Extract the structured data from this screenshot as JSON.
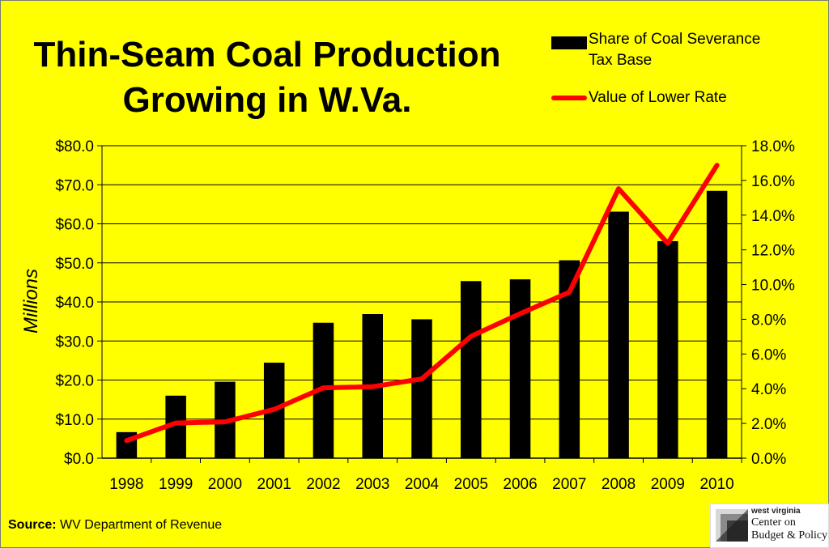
{
  "title": [
    "Thin-Seam Coal Production",
    "Growing in W.Va."
  ],
  "legend": {
    "bar_label_line1": "Share of Coal Severance",
    "bar_label_line2": "Tax Base",
    "line_label": "Value of Lower Rate"
  },
  "source": {
    "prefix": "Source:",
    "text": "WV Department of Revenue"
  },
  "logo": {
    "line1": "west virginia",
    "line2": "Center on",
    "line3": "Budget & Policy"
  },
  "colors": {
    "background": "#ffff00",
    "bars": "#000000",
    "line": "#ff0000",
    "grid": "#000000"
  },
  "chart_data": {
    "type": "bar+line",
    "categories": [
      "1998",
      "1999",
      "2000",
      "2001",
      "2002",
      "2003",
      "2004",
      "2005",
      "2006",
      "2007",
      "2008",
      "2009",
      "2010"
    ],
    "ylabel": "Millions",
    "ylim": [
      0,
      80
    ],
    "y_ticks": [
      "$0.0",
      "$10.0",
      "$20.0",
      "$30.0",
      "$40.0",
      "$50.0",
      "$60.0",
      "$70.0",
      "$80.0"
    ],
    "y2lim": [
      0,
      18
    ],
    "y2_ticks": [
      "0.0%",
      "2.0%",
      "4.0%",
      "6.0%",
      "8.0%",
      "10.0%",
      "12.0%",
      "14.0%",
      "16.0%",
      "18.0%"
    ],
    "grid": true,
    "legend_position": "top-right",
    "series": [
      {
        "name": "Share of Coal Severance Tax Base",
        "type": "bar",
        "axis": "right",
        "values": [
          1.5,
          3.6,
          4.4,
          5.5,
          7.8,
          8.3,
          8.0,
          10.2,
          10.3,
          11.4,
          14.2,
          12.5,
          15.4
        ]
      },
      {
        "name": "Value of Lower Rate",
        "type": "line",
        "axis": "left",
        "values": [
          4.5,
          9.0,
          9.3,
          12.5,
          18.0,
          18.3,
          20.3,
          31.2,
          37.0,
          42.5,
          69.0,
          55.0,
          75.0
        ]
      }
    ]
  }
}
